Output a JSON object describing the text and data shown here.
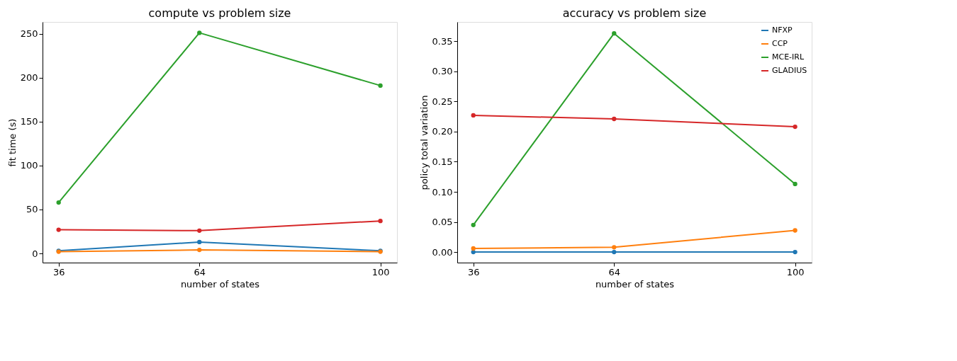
{
  "chart_data": [
    {
      "type": "line",
      "title": "compute vs problem size",
      "xlabel": "number of states",
      "ylabel": "fit time (s)",
      "x": [
        36,
        64,
        100
      ],
      "xlim": [
        32.8,
        103.3
      ],
      "xticks": [
        36,
        64,
        100
      ],
      "ylim": [
        -10.4,
        263.4
      ],
      "yticks": [
        0,
        50,
        100,
        150,
        200,
        250
      ],
      "grid": false,
      "legend": false,
      "marker": "circle",
      "line_style": "solid",
      "series": [
        {
          "color": "#1f77b4",
          "values": [
            3,
            13,
            3
          ]
        },
        {
          "color": "#ff7f0e",
          "values": [
            2,
            4,
            2
          ]
        },
        {
          "color": "#2ca02c",
          "values": [
            58,
            251,
            191
          ]
        },
        {
          "color": "#d62728",
          "values": [
            27,
            26,
            37
          ]
        }
      ]
    },
    {
      "type": "line",
      "title": "accuracy vs problem size",
      "xlabel": "number of states",
      "ylabel": "policy total variation",
      "x": [
        36,
        64,
        100
      ],
      "xlim": [
        32.8,
        103.3
      ],
      "xticks": [
        36,
        64,
        100
      ],
      "ylim": [
        -0.0175,
        0.382
      ],
      "yticks": [
        {
          "value": 0,
          "label": "0.00"
        },
        {
          "value": 0.05,
          "label": "0.05"
        },
        {
          "value": 0.1,
          "label": "0.10"
        },
        {
          "value": 0.15,
          "label": "0.15"
        },
        {
          "value": 0.2,
          "label": "0.20"
        },
        {
          "value": 0.25,
          "label": "0.25"
        },
        {
          "value": 0.3,
          "label": "0.30"
        },
        {
          "value": 0.35,
          "label": "0.35"
        }
      ],
      "grid": false,
      "legend": "top right",
      "marker": "circle",
      "line_style": "solid",
      "series": [
        {
          "name": "NFXP",
          "color": "#1f77b4",
          "values": [
            0,
            0,
            0
          ]
        },
        {
          "name": "CCP",
          "color": "#ff7f0e",
          "values": [
            0.006,
            0.008,
            0.036
          ]
        },
        {
          "name": "MCE-IRL",
          "color": "#2ca02c",
          "values": [
            0.045,
            0.363,
            0.113
          ]
        },
        {
          "name": "GLADIUS",
          "color": "#d62728",
          "values": [
            0.227,
            0.221,
            0.208
          ]
        }
      ]
    }
  ]
}
